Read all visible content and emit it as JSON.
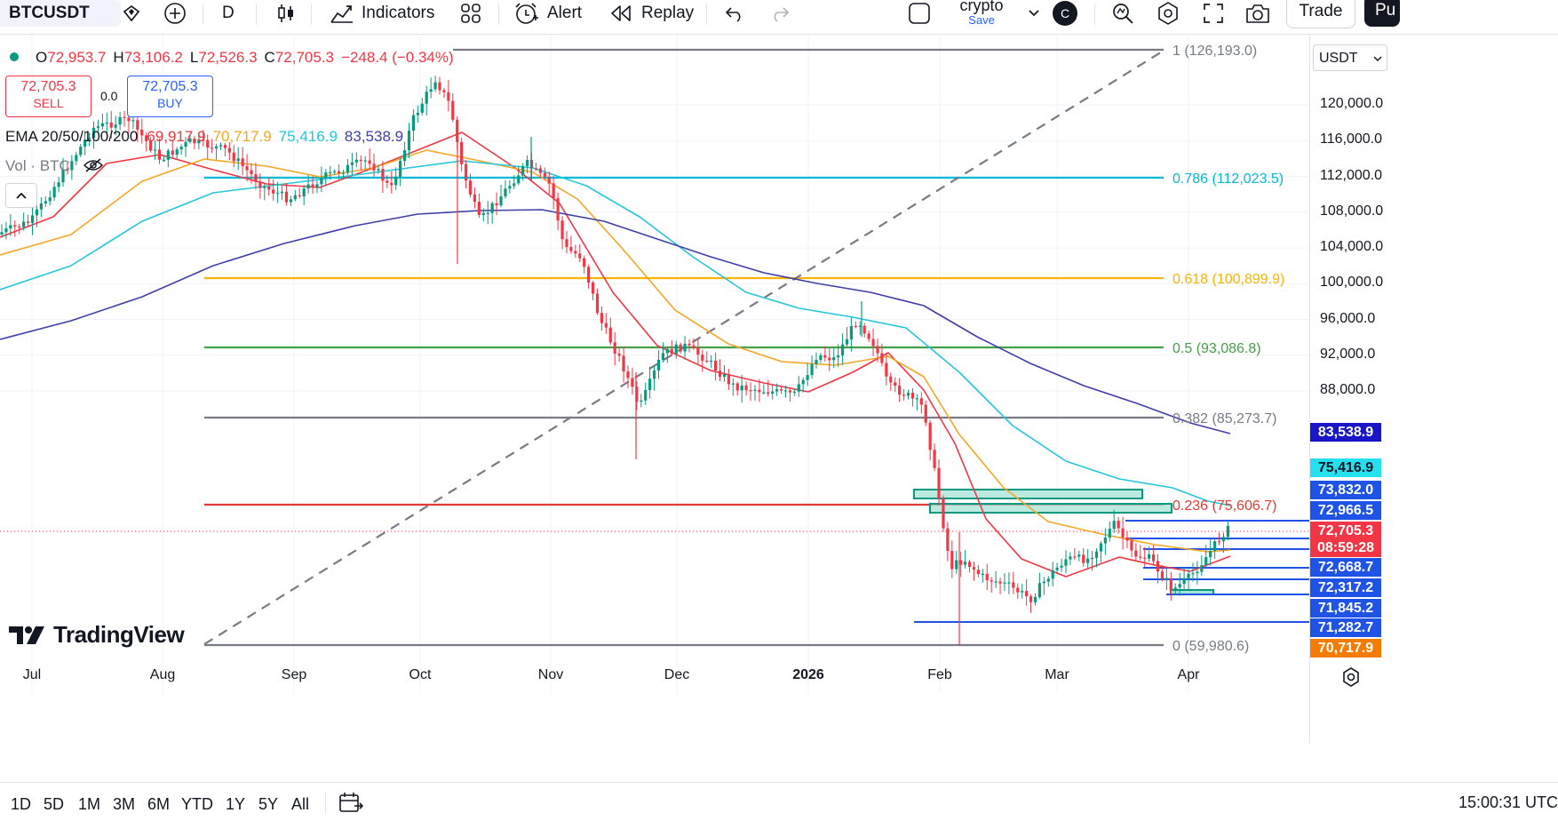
{
  "toolbar": {
    "symbol": "BTCUSDT",
    "interval": "D",
    "indicators_label": "Indicators",
    "alert_label": "Alert",
    "replay_label": "Replay",
    "layout_name": "crypto",
    "layout_status": "Save",
    "avatar_letter": "C",
    "trade_label": "Trade",
    "publish_label": "Pu"
  },
  "legend": {
    "ohlc": [
      {
        "k": "O",
        "v": "72,953.7"
      },
      {
        "k": "H",
        "v": "73,106.2"
      },
      {
        "k": "L",
        "v": "72,526.3"
      },
      {
        "k": "C",
        "v": "72,705.3"
      }
    ],
    "change": "−248.4 (−0.34%)",
    "sell_price": "72,705.3",
    "sell_label": "SELL",
    "spread": "0.0",
    "buy_price": "72,705.3",
    "buy_label": "BUY",
    "ema_title": "EMA 20/50/100/200",
    "ema_values": [
      {
        "v": "69,917.9",
        "color": "#e5383b"
      },
      {
        "v": "70,717.9",
        "color": "#f5a623"
      },
      {
        "v": "75,416.9",
        "color": "#26c6da"
      },
      {
        "v": "83,538.9",
        "color": "#3f3fa8"
      }
    ],
    "vol_label": "Vol · BTC"
  },
  "price_scale": {
    "currency": "USDT",
    "ticks": [
      "120,000.0",
      "116,000.0",
      "112,000.0",
      "108,000.0",
      "104,000.0",
      "100,000.0",
      "96,000.0",
      "92,000.0",
      "88,000.0"
    ],
    "badges": [
      {
        "v": "83,538.9",
        "bg": "#1717c6",
        "fg": "#ffffff",
        "y": 487
      },
      {
        "v": "75,416.9",
        "bg": "#26e0f0",
        "fg": "#131722",
        "y": 527
      },
      {
        "v": "73,832.0",
        "bg": "#1e53e5",
        "fg": "#ffffff",
        "y": 552
      },
      {
        "v": "72,966.5",
        "bg": "#1e53e5",
        "fg": "#ffffff",
        "y": 575
      },
      {
        "v": "72,705.3",
        "bg": "#f23645",
        "fg": "#ffffff",
        "y": 598
      },
      {
        "v": "08:59:28",
        "bg": "#f23645",
        "fg": "#ffffff",
        "y": 617
      },
      {
        "v": "72,668.7",
        "bg": "#1e53e5",
        "fg": "#ffffff",
        "y": 639
      },
      {
        "v": "72,317.2",
        "bg": "#1e53e5",
        "fg": "#ffffff",
        "y": 662
      },
      {
        "v": "71,845.2",
        "bg": "#1e53e5",
        "fg": "#ffffff",
        "y": 685
      },
      {
        "v": "71,282.7",
        "bg": "#1e53e5",
        "fg": "#ffffff",
        "y": 707
      },
      {
        "v": "70,717.9",
        "bg": "#f57c00",
        "fg": "#ffffff",
        "y": 730
      }
    ]
  },
  "time_axis": {
    "labels": [
      {
        "t": "Jul",
        "x": 36
      },
      {
        "t": "Aug",
        "x": 183
      },
      {
        "t": "Sep",
        "x": 331
      },
      {
        "t": "Oct",
        "x": 473
      },
      {
        "t": "Nov",
        "x": 620
      },
      {
        "t": "Dec",
        "x": 762
      },
      {
        "t": "2026",
        "x": 910,
        "bold": true
      },
      {
        "t": "Feb",
        "x": 1058
      },
      {
        "t": "Mar",
        "x": 1190
      },
      {
        "t": "Apr",
        "x": 1338
      }
    ]
  },
  "fib": {
    "levels": [
      {
        "ratio": "1",
        "price": "126,193.0",
        "color": "#787b86"
      },
      {
        "ratio": "0.786",
        "price": "112,023.5",
        "color": "#00bcd4"
      },
      {
        "ratio": "0.618",
        "price": "100,899.9",
        "color": "#f9b300"
      },
      {
        "ratio": "0.5",
        "price": "93,086.8",
        "color": "#43a047"
      },
      {
        "ratio": "0.382",
        "price": "85,273.7",
        "color": "#787b86"
      },
      {
        "ratio": "0.236",
        "price": "75,606.7",
        "color": "#e53935"
      },
      {
        "ratio": "0",
        "price": "59,980.6",
        "color": "#787b86"
      }
    ]
  },
  "branding": {
    "logo_text": "TradingView"
  },
  "bottom": {
    "ranges": [
      "1D",
      "5D",
      "1M",
      "3M",
      "6M",
      "YTD",
      "1Y",
      "5Y",
      "All"
    ],
    "clock": "15:00:31 UTC"
  },
  "colors": {
    "up": "#089981",
    "down": "#f23645"
  }
}
